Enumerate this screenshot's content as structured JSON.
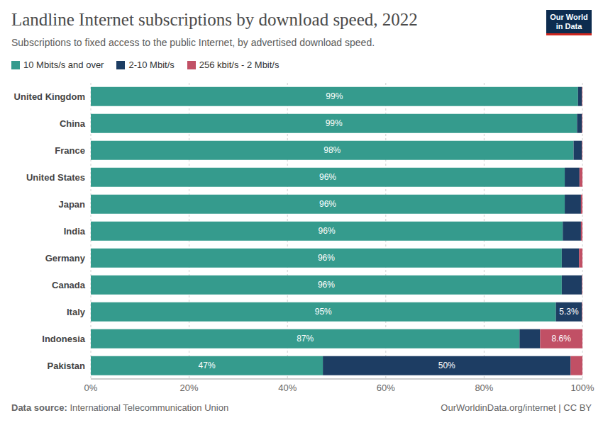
{
  "chart_data": {
    "type": "bar",
    "orientation": "horizontal",
    "stacked": true,
    "data_labels": true,
    "grid": true,
    "legend": "top",
    "title": "Landline Internet subscriptions by download speed, 2022",
    "subtitle": "Subscriptions to fixed access to the public Internet, by advertised download speed.",
    "logo": "Our World in Data",
    "source_label": "Data source:",
    "source": "International Telecommunication Union",
    "footer_right": "OurWorldinData.org/internet | CC BY",
    "categories": [
      "United Kingdom",
      "China",
      "France",
      "United States",
      "Japan",
      "India",
      "Germany",
      "Canada",
      "Italy",
      "Indonesia",
      "Pakistan"
    ],
    "series": [
      {
        "name": "10 Mbits/s and over",
        "color": "#359b8d",
        "values": [
          99.1,
          98.9,
          98.2,
          96.4,
          96.4,
          96.0,
          95.8,
          95.8,
          94.6,
          87.2,
          47.2
        ],
        "value_labels": [
          "99%",
          "99%",
          "98%",
          "96%",
          "96%",
          "96%",
          "96%",
          "96%",
          "95%",
          "87%",
          "47%"
        ]
      },
      {
        "name": "2-10 Mbit/s",
        "color": "#1d3d63",
        "values": [
          0.8,
          1.0,
          1.7,
          3.0,
          3.3,
          3.7,
          3.5,
          4.1,
          5.3,
          4.2,
          50.4
        ],
        "value_labels": [
          null,
          null,
          null,
          null,
          null,
          null,
          null,
          null,
          "5.3%",
          null,
          "50%"
        ]
      },
      {
        "name": "256 kbit/s - 2 Mbit/s",
        "color": "#c15065",
        "values": [
          0.1,
          0.1,
          0.1,
          0.6,
          0.3,
          0.3,
          0.7,
          0.1,
          0.1,
          8.6,
          2.4
        ],
        "value_labels": [
          null,
          null,
          null,
          null,
          null,
          null,
          null,
          null,
          null,
          "8.6%",
          null
        ]
      }
    ],
    "xlim": [
      0,
      100
    ],
    "xticks": [
      {
        "value": 0,
        "label": "0%"
      },
      {
        "value": 20,
        "label": "20%"
      },
      {
        "value": 40,
        "label": "40%"
      },
      {
        "value": 60,
        "label": "60%"
      },
      {
        "value": 80,
        "label": "80%"
      },
      {
        "value": 100,
        "label": "100%"
      }
    ]
  }
}
